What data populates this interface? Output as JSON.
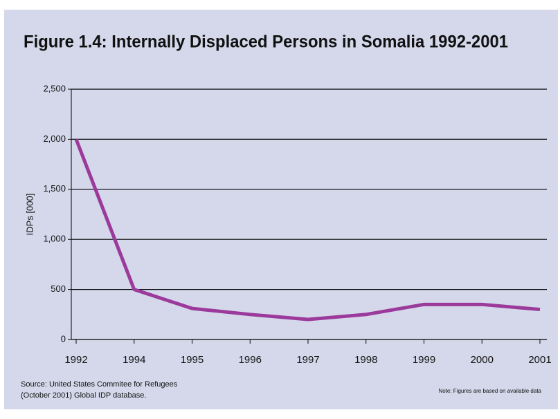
{
  "chart_data": {
    "type": "line",
    "title": "Figure 1.4: Internally Displaced Persons in Somalia 1992-2001",
    "y_label": "IDPs [000]",
    "source": [
      "Source: United States Commitee for Refugees",
      "(October 2001) Global IDP database."
    ],
    "note": "Note: Figures are based on available data",
    "categories": [
      "1992",
      "1994",
      "1995",
      "1996",
      "1997",
      "1998",
      "1999",
      "2000",
      "2001"
    ],
    "series": [
      {
        "name": "IDPs",
        "color": "#9c3a9c",
        "values": [
          2000,
          500,
          310,
          250,
          200,
          250,
          350,
          350,
          300
        ]
      }
    ],
    "ylim": [
      0,
      2500
    ],
    "yticks": [
      0,
      500,
      {
        "value": 1000,
        "label": "1,000"
      },
      {
        "value": 1500,
        "label": "1,500"
      },
      {
        "value": 2000,
        "label": "2,000"
      },
      {
        "value": 2500,
        "label": "2,500"
      }
    ],
    "grid": true
  }
}
